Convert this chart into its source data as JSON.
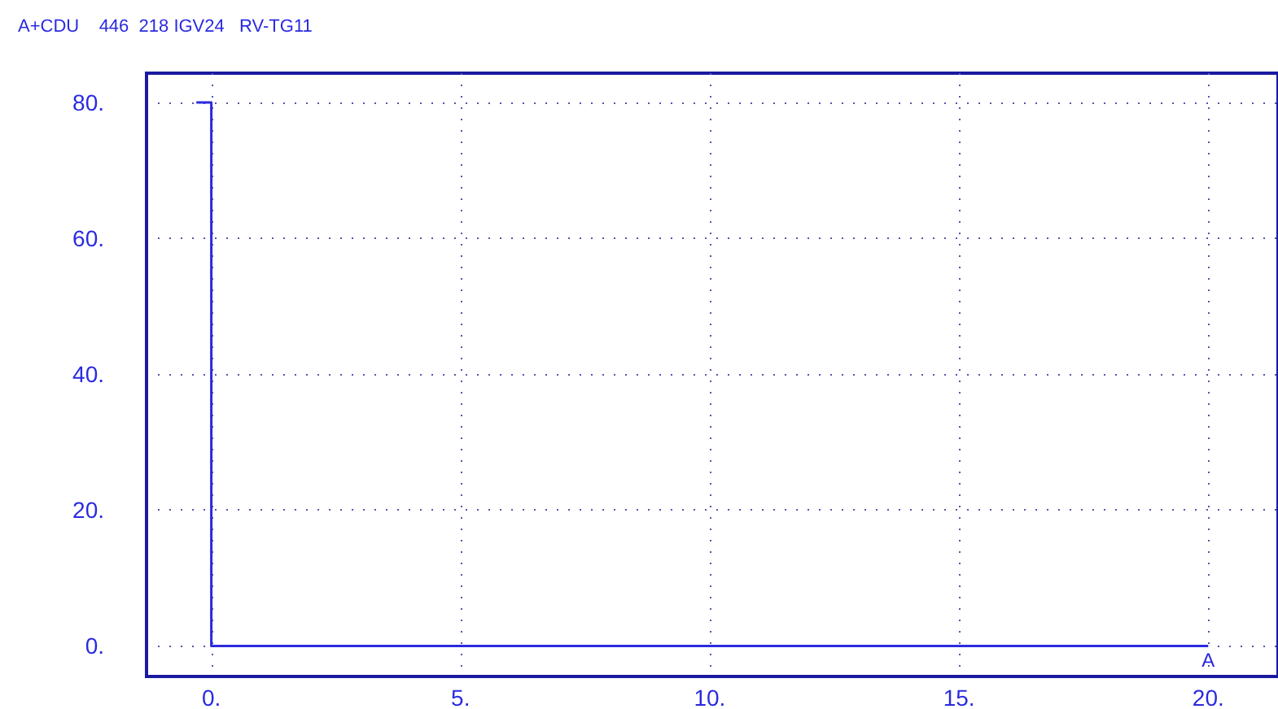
{
  "chart_data": {
    "type": "line",
    "title": "A+CDU    446  218 IGV24   RV-TG11",
    "x": [
      -0.3,
      0,
      0,
      20
    ],
    "values": [
      80,
      80,
      0,
      0
    ],
    "color": "#2a2ae0",
    "xlim": [
      -1.3,
      21.4
    ],
    "xticks": [
      {
        "value": 0,
        "label": "0."
      },
      {
        "value": 5,
        "label": "5."
      },
      {
        "value": 10,
        "label": "10."
      },
      {
        "value": 15,
        "label": "15."
      },
      {
        "value": 20,
        "label": "20."
      }
    ],
    "ylim": [
      -4.5,
      84.3
    ],
    "yticks": [
      {
        "value": 0,
        "label": "0."
      },
      {
        "value": 20,
        "label": "20."
      },
      {
        "value": 40,
        "label": "40."
      },
      {
        "value": 60,
        "label": "60."
      },
      {
        "value": 80,
        "label": "80."
      }
    ],
    "grid": true,
    "marker": "none",
    "line_style": "solid",
    "annotations": [
      {
        "text": "A",
        "x": 20,
        "y": 0
      }
    ]
  }
}
